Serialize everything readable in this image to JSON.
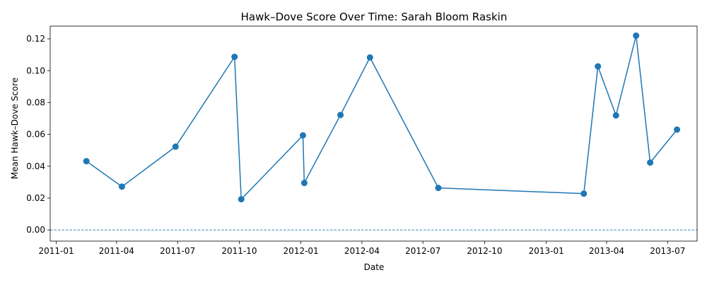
{
  "chart_data": {
    "type": "line",
    "title": "Hawk–Dove Score Over Time: Sarah Bloom Raskin",
    "xlabel": "Date",
    "ylabel": "Mean Hawk–Dove Score",
    "x_ticks": [
      "2011-01-01",
      "2011-04-01",
      "2011-07-01",
      "2011-10-01",
      "2012-01-01",
      "2012-04-01",
      "2012-07-01",
      "2012-10-01",
      "2013-01-01",
      "2013-04-01",
      "2013-07-01"
    ],
    "y_ticks": [
      0.0,
      0.02,
      0.04,
      0.06,
      0.08,
      0.1,
      0.12
    ],
    "y_tick_labels": [
      "0.00",
      "0.02",
      "0.04",
      "0.06",
      "0.08",
      "0.10",
      "0.12"
    ],
    "xlim": [
      "2010-12-23",
      "2013-08-14"
    ],
    "ylim": [
      -0.007,
      0.128
    ],
    "reference_line": {
      "y": 0,
      "style": "dashed"
    },
    "color": "#1f77b4",
    "grid": false,
    "series": [
      {
        "name": "",
        "points": [
          {
            "x": "2011-02-15",
            "y": 0.0432
          },
          {
            "x": "2011-04-09",
            "y": 0.0272
          },
          {
            "x": "2011-06-28",
            "y": 0.0523
          },
          {
            "x": "2011-09-24",
            "y": 0.1087
          },
          {
            "x": "2011-10-04",
            "y": 0.0193
          },
          {
            "x": "2012-01-04",
            "y": 0.0594
          },
          {
            "x": "2012-01-06",
            "y": 0.0295
          },
          {
            "x": "2012-02-29",
            "y": 0.0722
          },
          {
            "x": "2012-04-13",
            "y": 0.1083
          },
          {
            "x": "2012-07-24",
            "y": 0.0264
          },
          {
            "x": "2013-02-26",
            "y": 0.0228
          },
          {
            "x": "2013-03-19",
            "y": 0.1027
          },
          {
            "x": "2013-04-15",
            "y": 0.0719
          },
          {
            "x": "2013-05-15",
            "y": 0.122
          },
          {
            "x": "2013-06-05",
            "y": 0.0423
          },
          {
            "x": "2013-07-15",
            "y": 0.063
          }
        ]
      }
    ]
  }
}
